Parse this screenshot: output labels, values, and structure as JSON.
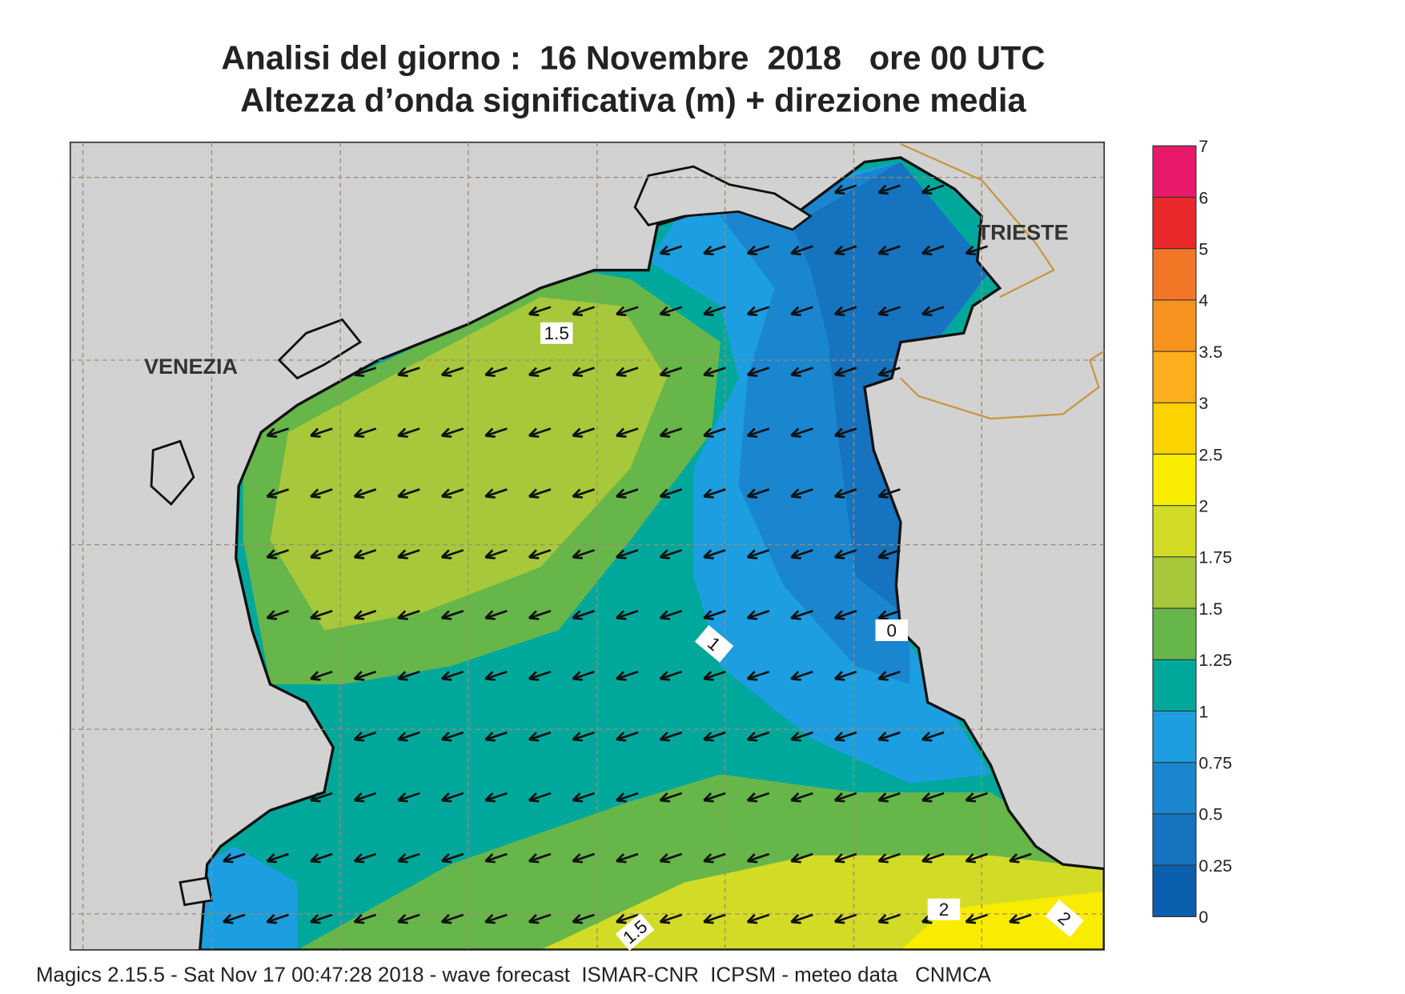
{
  "title": {
    "line1": "Analisi del giorno :  16 Novembre  2018   ore 00 UTC",
    "line2": "Altezza d’onda significativa (m) + direzione media"
  },
  "places": [
    "VENEZIA",
    "TRIESTE"
  ],
  "contour_labels": [
    "1.5",
    "1",
    "0",
    "1.5",
    "2",
    "2"
  ],
  "colorbar": {
    "levels": [
      0,
      0.25,
      0.5,
      0.75,
      1,
      1.25,
      1.5,
      1.75,
      2,
      2.5,
      3,
      3.5,
      4,
      5,
      6,
      7
    ],
    "colors": [
      "#0a5fae",
      "#1673bf",
      "#1a86d0",
      "#1c9ee0",
      "#00a89c",
      "#66b64a",
      "#a6c83a",
      "#d2dc26",
      "#f8ec00",
      "#fcd200",
      "#fcae1c",
      "#f8921e",
      "#f27626",
      "#e8282a",
      "#e8186a"
    ]
  },
  "footer": "Magics 2.15.5 - Sat Nov 17 00:47:28 2018 - wave forecast  ISMAR-CNR  ICPSM - meteo data   CNMCA"
}
